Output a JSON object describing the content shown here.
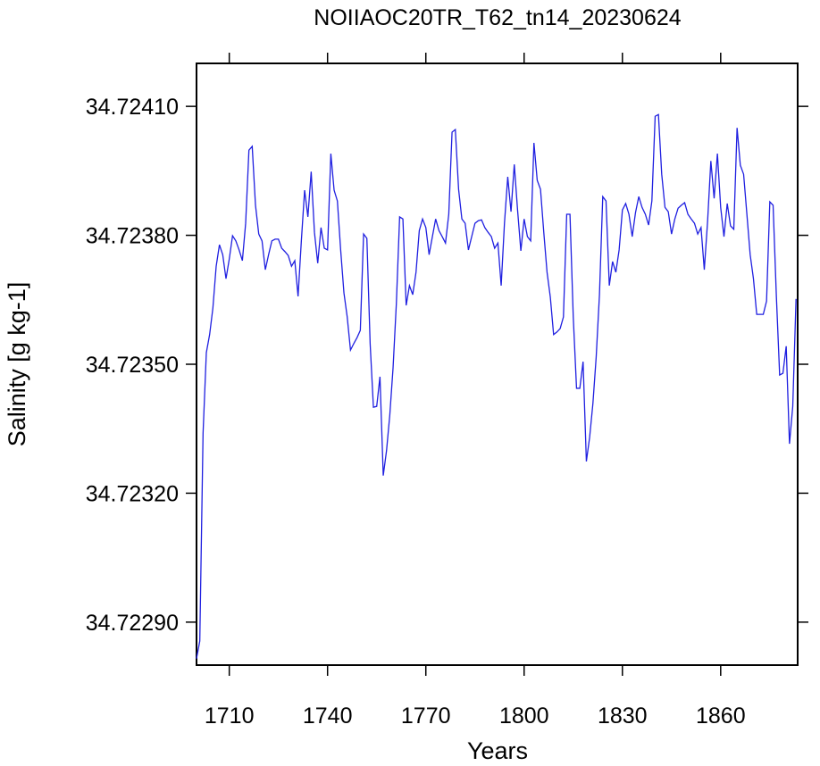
{
  "chart_data": {
    "type": "line",
    "title": "NOIIAOC20TR_T62_tn14_20230624",
    "xlabel": "Years",
    "ylabel": "Salinity [g kg-1]",
    "color": "#1f1fe0",
    "xlim": [
      1700,
      1883.5
    ],
    "xticks": [
      1710,
      1740,
      1770,
      1800,
      1830,
      1860
    ],
    "ylim": [
      34.7228,
      34.7242
    ],
    "yticks": [
      {
        "value": 34.7229,
        "label": "34.72290"
      },
      {
        "value": 34.7232,
        "label": "34.72320"
      },
      {
        "value": 34.7235,
        "label": "34.72350"
      },
      {
        "value": 34.7238,
        "label": "34.72380"
      },
      {
        "value": 34.7241,
        "label": "34.72410"
      }
    ],
    "x": [
      1700,
      1701,
      1702,
      1703,
      1704,
      1705,
      1706,
      1707,
      1708,
      1709,
      1710,
      1711,
      1712,
      1713,
      1714,
      1715,
      1716,
      1717,
      1718,
      1719,
      1720,
      1721,
      1722,
      1723,
      1724,
      1725,
      1726,
      1727,
      1728,
      1729,
      1730,
      1731,
      1732,
      1733,
      1734,
      1735,
      1736,
      1737,
      1738,
      1739,
      1740,
      1741,
      1742,
      1743,
      1744,
      1745,
      1746,
      1747,
      1748,
      1749,
      1750,
      1751,
      1752,
      1753,
      1754,
      1755,
      1756,
      1757,
      1758,
      1759,
      1760,
      1761,
      1762,
      1763,
      1764,
      1765,
      1766,
      1767,
      1768,
      1769,
      1770,
      1771,
      1772,
      1773,
      1774,
      1775,
      1776,
      1777,
      1778,
      1779,
      1780,
      1781,
      1782,
      1783,
      1784,
      1785,
      1786,
      1787,
      1788,
      1789,
      1790,
      1791,
      1792,
      1793,
      1794,
      1795,
      1796,
      1797,
      1798,
      1799,
      1800,
      1801,
      1802,
      1803,
      1804,
      1805,
      1806,
      1807,
      1808,
      1809,
      1810,
      1811,
      1812,
      1813,
      1814,
      1815,
      1816,
      1817,
      1818,
      1819,
      1820,
      1821,
      1822,
      1823,
      1824,
      1825,
      1826,
      1827,
      1828,
      1829,
      1830,
      1831,
      1832,
      1833,
      1834,
      1835,
      1836,
      1837,
      1838,
      1839,
      1840,
      1841,
      1842,
      1843,
      1844,
      1845,
      1846,
      1847,
      1848,
      1849,
      1850,
      1851,
      1852,
      1853,
      1854,
      1855,
      1856,
      1857,
      1858,
      1859,
      1860,
      1861,
      1862,
      1863,
      1864,
      1865,
      1866,
      1867,
      1868,
      1869,
      1870,
      1871,
      1872,
      1873,
      1874,
      1875,
      1876,
      1877,
      1878,
      1879,
      1880,
      1881,
      1882,
      1883
    ],
    "values": [
      34.722815,
      34.722856,
      34.72334,
      34.723527,
      34.723569,
      34.723631,
      34.723728,
      34.723778,
      34.723755,
      34.723699,
      34.723745,
      34.723799,
      34.723787,
      34.723766,
      34.723741,
      34.723828,
      34.723998,
      34.724007,
      34.72387,
      34.723803,
      34.723787,
      34.72372,
      34.723755,
      34.723787,
      34.723791,
      34.723791,
      34.72377,
      34.723762,
      34.723753,
      34.723728,
      34.723741,
      34.723658,
      34.723787,
      34.723905,
      34.723843,
      34.723948,
      34.723807,
      34.723735,
      34.723818,
      34.72377,
      34.723766,
      34.72399,
      34.723905,
      34.72388,
      34.723766,
      34.723666,
      34.72361,
      34.723533,
      34.723548,
      34.723562,
      34.723579,
      34.723803,
      34.723793,
      34.723548,
      34.7234,
      34.723402,
      34.723471,
      34.723241,
      34.723299,
      34.723382,
      34.723492,
      34.723641,
      34.723843,
      34.723838,
      34.723637,
      34.723683,
      34.723662,
      34.723714,
      34.723811,
      34.723838,
      34.723818,
      34.723755,
      34.723797,
      34.723838,
      34.723811,
      34.723797,
      34.723782,
      34.723849,
      34.72404,
      34.724046,
      34.723907,
      34.723838,
      34.723828,
      34.723766,
      34.723797,
      34.723828,
      34.723834,
      34.723836,
      34.723818,
      34.723807,
      34.723797,
      34.72377,
      34.723782,
      34.723683,
      34.723828,
      34.723936,
      34.723855,
      34.723965,
      34.723859,
      34.723764,
      34.723838,
      34.723797,
      34.723787,
      34.724015,
      34.723928,
      34.723907,
      34.723807,
      34.723714,
      34.723656,
      34.723569,
      34.723575,
      34.723583,
      34.72361,
      34.723849,
      34.723849,
      34.72361,
      34.723444,
      34.723444,
      34.723506,
      34.723274,
      34.72333,
      34.723409,
      34.723517,
      34.723662,
      34.72389,
      34.72388,
      34.723683,
      34.723739,
      34.723714,
      34.723766,
      34.723859,
      34.723874,
      34.723849,
      34.723797,
      34.723853,
      34.72389,
      34.723865,
      34.723849,
      34.723824,
      34.72388,
      34.724077,
      34.724081,
      34.723942,
      34.723865,
      34.723855,
      34.723803,
      34.723838,
      34.723863,
      34.72387,
      34.723876,
      34.723849,
      34.723838,
      34.723828,
      34.723803,
      34.723818,
      34.72372,
      34.723832,
      34.723973,
      34.723886,
      34.72399,
      34.723865,
      34.723797,
      34.723874,
      34.723822,
      34.723814,
      34.72405,
      34.723963,
      34.723942,
      34.723849,
      34.723755,
      34.723699,
      34.723616,
      34.723616,
      34.723616,
      34.723647,
      34.723878,
      34.72387,
      34.723658,
      34.723475,
      34.723479,
      34.723542,
      34.723315,
      34.723402,
      34.723652
    ]
  }
}
